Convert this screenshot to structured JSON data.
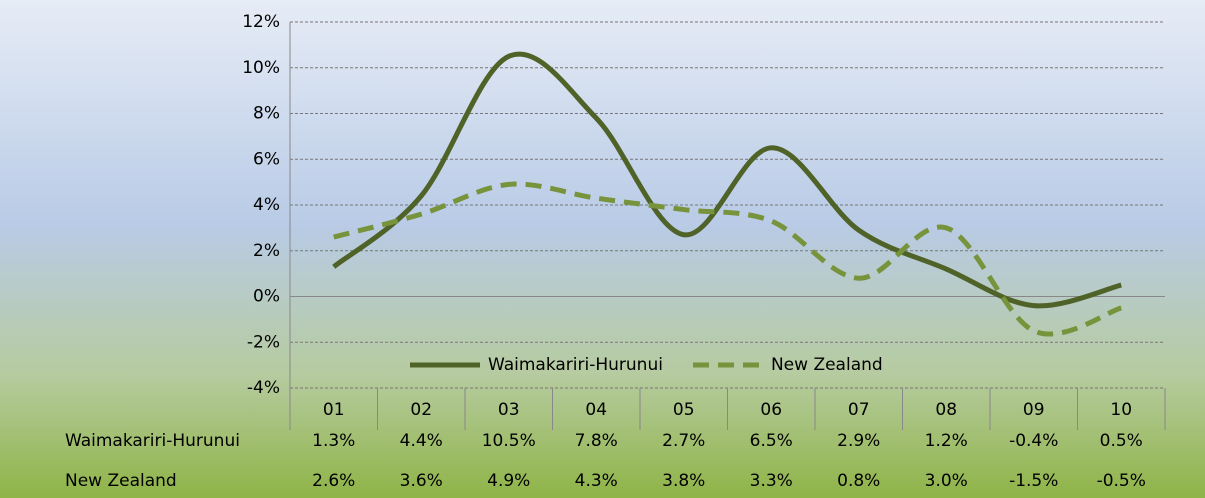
{
  "chart_data": {
    "type": "line",
    "categories": [
      "01",
      "02",
      "03",
      "04",
      "05",
      "06",
      "07",
      "08",
      "09",
      "10"
    ],
    "series": [
      {
        "name": "Waimakariri-Hurunui",
        "color": "#4f6228",
        "dash": false,
        "values": [
          1.3,
          4.4,
          10.5,
          7.8,
          2.7,
          6.5,
          2.9,
          1.2,
          -0.4,
          0.5
        ],
        "value_labels": [
          "1.3%",
          "4.4%",
          "10.5%",
          "7.8%",
          "2.7%",
          "6.5%",
          "2.9%",
          "1.2%",
          "-0.4%",
          "0.5%"
        ]
      },
      {
        "name": "New Zealand",
        "color": "#77933c",
        "dash": true,
        "values": [
          2.6,
          3.6,
          4.9,
          4.3,
          3.8,
          3.3,
          0.8,
          3.0,
          -1.5,
          -0.5
        ],
        "value_labels": [
          "2.6%",
          "3.6%",
          "4.9%",
          "4.3%",
          "3.8%",
          "3.3%",
          "0.8%",
          "3.0%",
          "-1.5%",
          "-0.5%"
        ]
      }
    ],
    "ylim": [
      -4,
      12
    ],
    "yticks": [
      {
        "value": -4,
        "label": "-4%"
      },
      {
        "value": -2,
        "label": "-2%"
      },
      {
        "value": 0,
        "label": "0%"
      },
      {
        "value": 2,
        "label": "2%"
      },
      {
        "value": 4,
        "label": "4%"
      },
      {
        "value": 6,
        "label": "6%"
      },
      {
        "value": 8,
        "label": "8%"
      },
      {
        "value": 10,
        "label": "10%"
      },
      {
        "value": 12,
        "label": "12%"
      }
    ],
    "grid": true,
    "smooth": true,
    "legend": "bottom"
  }
}
